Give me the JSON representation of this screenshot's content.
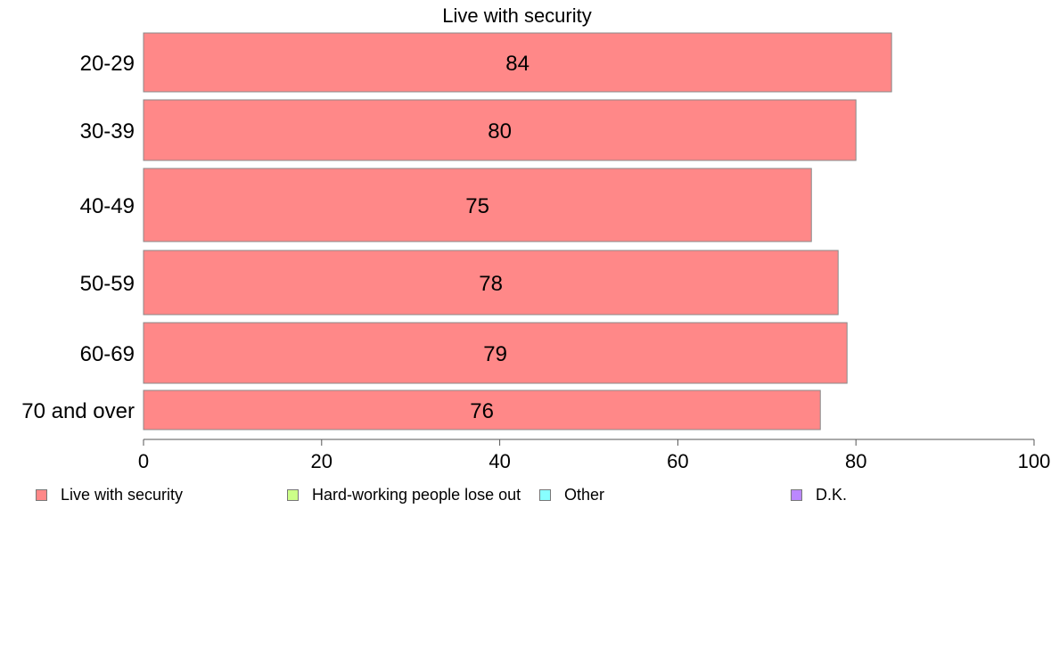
{
  "chart_data": {
    "type": "bar",
    "orientation": "horizontal",
    "title": "Live with security",
    "categories": [
      "20-29",
      "30-39",
      "40-49",
      "50-59",
      "60-69",
      "70 and over"
    ],
    "series": [
      {
        "name": "Live with security",
        "values": [
          84,
          80,
          75,
          78,
          79,
          76
        ],
        "color": "#ff8888"
      }
    ],
    "xlim": [
      0,
      100
    ],
    "xticks": [
      "0",
      "20",
      "40",
      "60",
      "80",
      "100"
    ],
    "data_labels": [
      "84",
      "80",
      "75",
      "78",
      "79",
      "76"
    ],
    "grid": false,
    "legend": {
      "placement": "bottom",
      "entries": [
        {
          "label": "Live with security",
          "color": "#ff8888"
        },
        {
          "label": "Hard-working people lose out",
          "color": "#ccff88"
        },
        {
          "label": "Other",
          "color": "#88ffff"
        },
        {
          "label": "D.K.",
          "color": "#bb88ff"
        }
      ]
    }
  }
}
